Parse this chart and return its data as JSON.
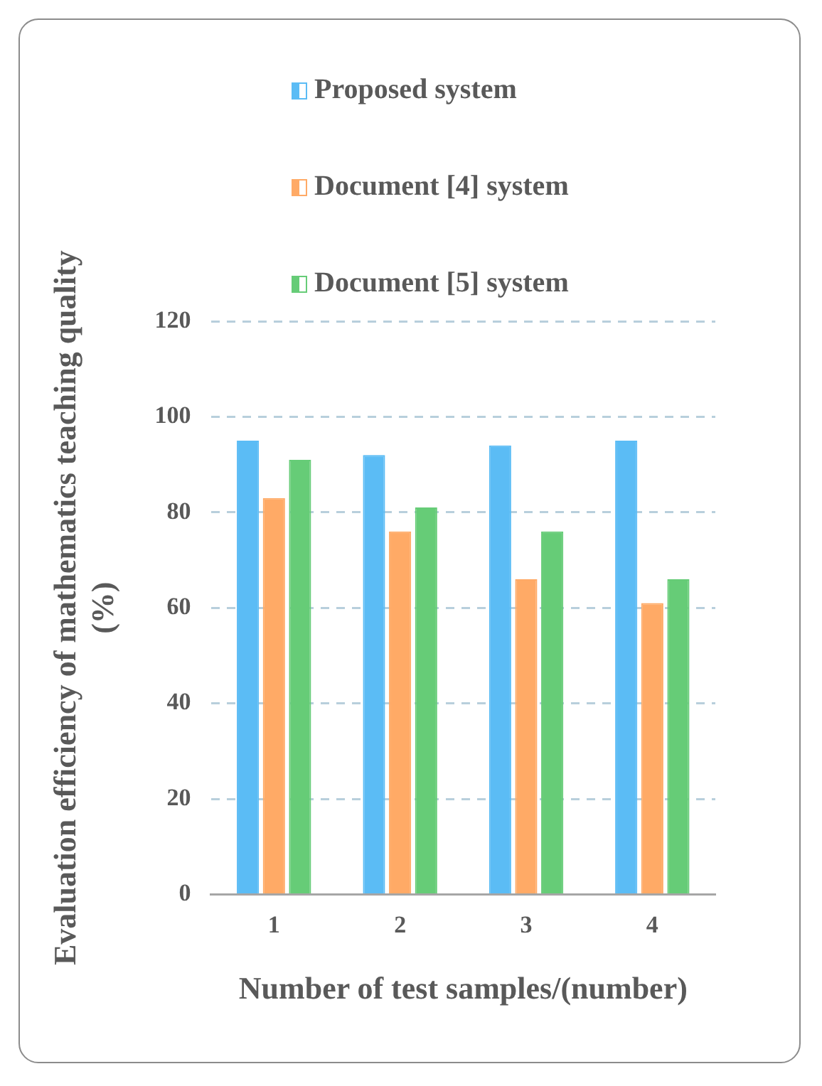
{
  "chart_data": {
    "type": "bar",
    "xlabel": "Number of test samples/(number)",
    "ylabel": "Evaluation efficiency of mathematics teaching quality (%)",
    "categories": [
      "1",
      "2",
      "3",
      "4"
    ],
    "series": [
      {
        "name": "Proposed system",
        "color": "#5bbcf5",
        "values": [
          95,
          92,
          94,
          95
        ]
      },
      {
        "name": "Document [4] system",
        "color": "#ffaa66",
        "values": [
          83,
          76,
          66,
          61
        ]
      },
      {
        "name": "Document [5] system",
        "color": "#66cc77",
        "values": [
          91,
          81,
          76,
          66
        ]
      }
    ],
    "ylim": [
      0,
      120
    ],
    "yticks": [
      0,
      20,
      40,
      60,
      80,
      100,
      120
    ],
    "grid": "y",
    "legend": "top"
  }
}
